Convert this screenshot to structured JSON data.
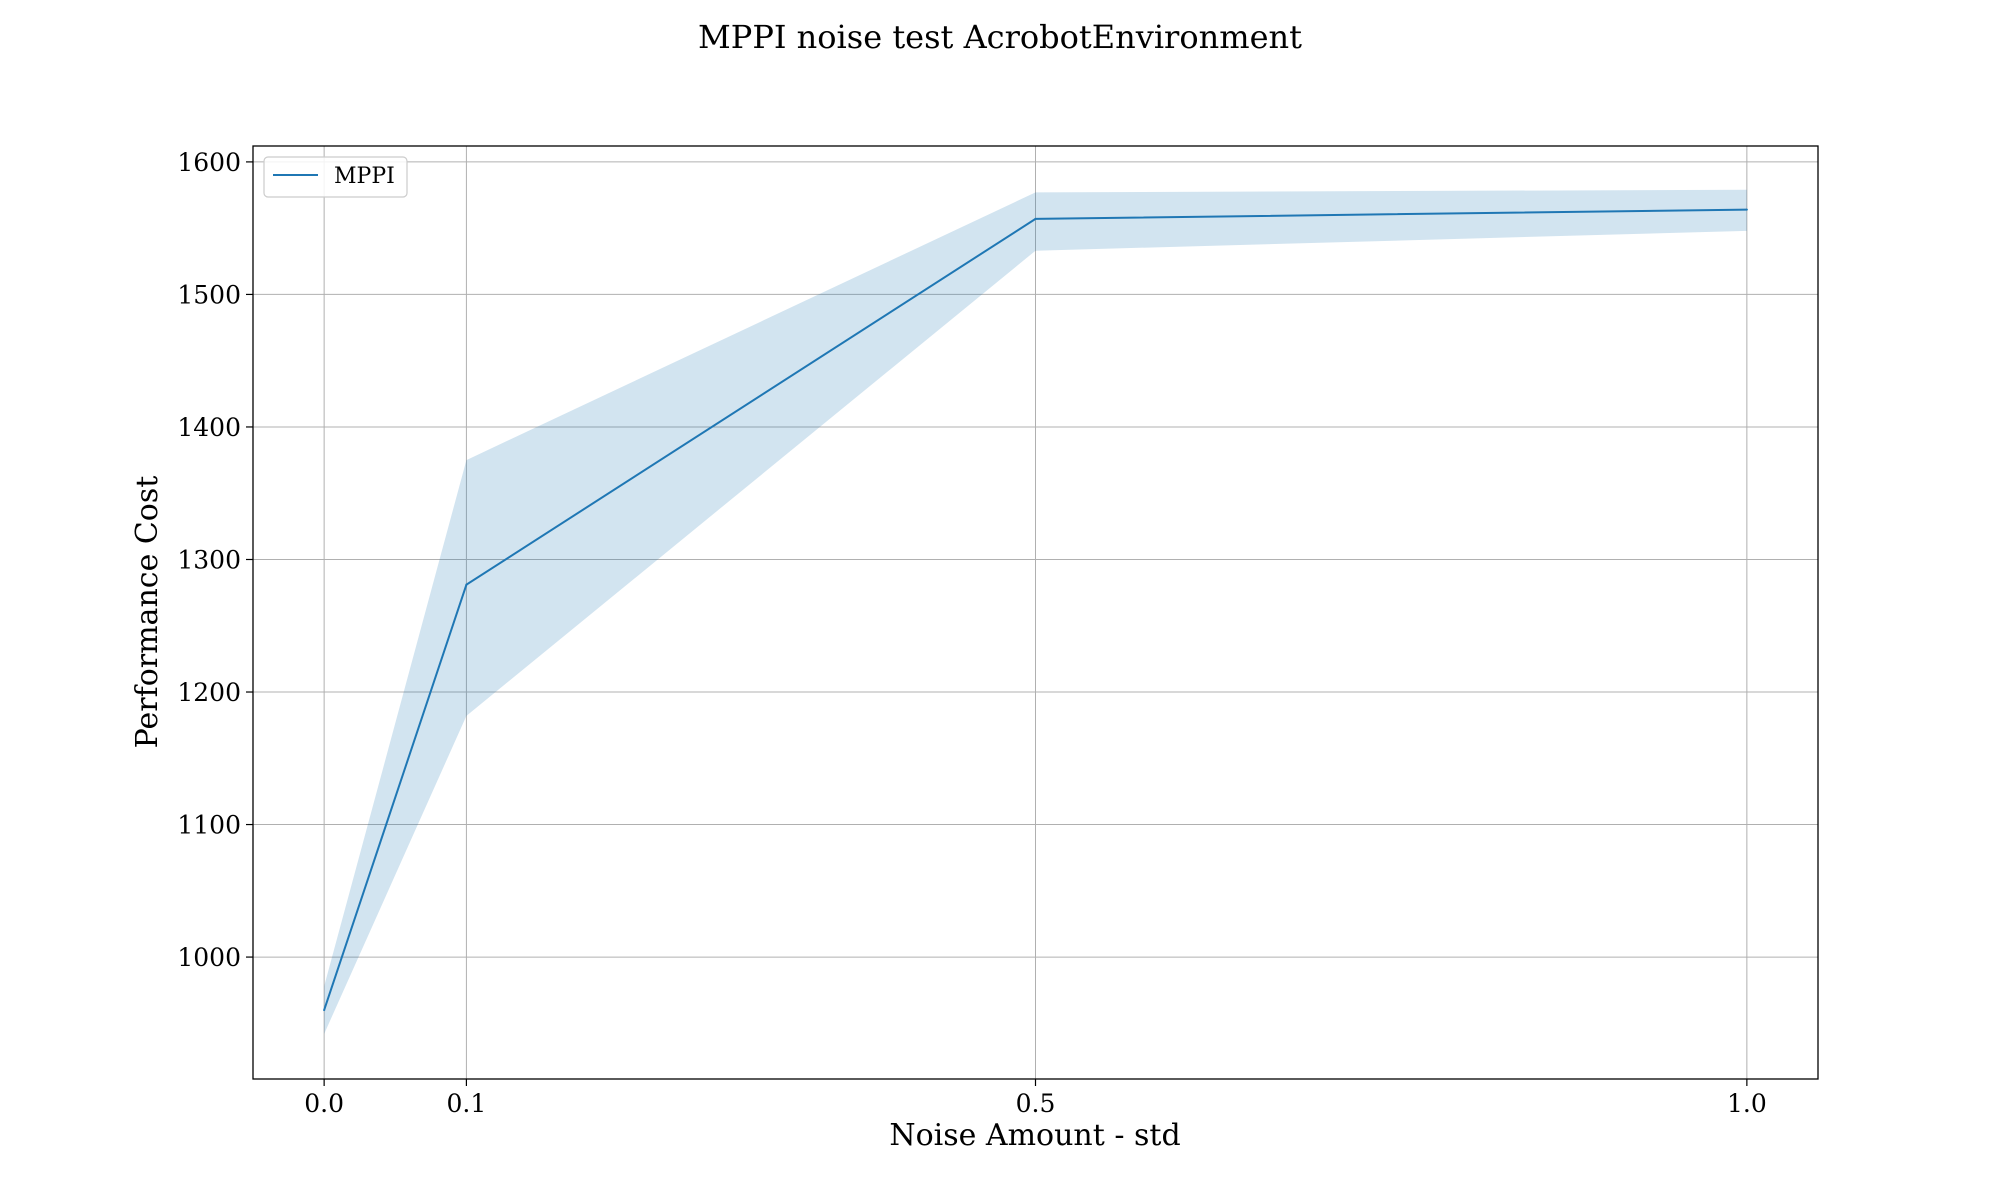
{
  "chart_data": {
    "type": "line",
    "title": "MPPI noise test AcrobotEnvironment",
    "xlabel": "Noise Amount - std",
    "ylabel": "Performance Cost",
    "x": [
      0.0,
      0.1,
      0.5,
      1.0
    ],
    "xticks": [
      "0.0",
      "0.1",
      "0.5",
      "1.0"
    ],
    "yticks": [
      "1000",
      "1100",
      "1200",
      "1300",
      "1400",
      "1500",
      "1600"
    ],
    "xlim": [
      -0.05,
      1.05
    ],
    "ylim": [
      908,
      1612
    ],
    "grid": true,
    "legend_position": "top-left",
    "series": [
      {
        "name": "MPPI",
        "color": "#1f77b4",
        "values": [
          960,
          1281,
          1557,
          1564
        ],
        "band_lower": [
          942,
          1182,
          1533,
          1548
        ],
        "band_upper": [
          978,
          1375,
          1577,
          1579
        ],
        "band_color": "#1f77b4"
      }
    ]
  }
}
